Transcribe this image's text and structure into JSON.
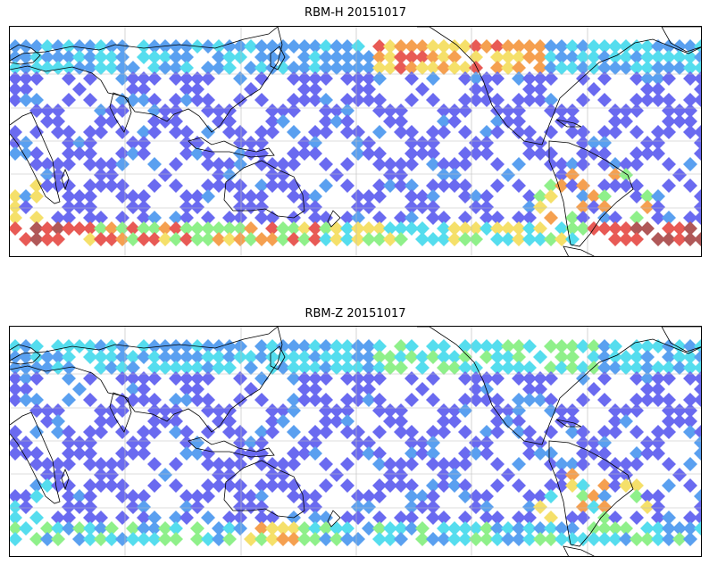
{
  "panels": [
    {
      "title": "RBM-H 20151017",
      "palette": [
        "#6a6af0",
        "#5aa0f0",
        "#55ddee",
        "#8ff08a",
        "#f5e06a",
        "#f5a050",
        "#e85a55",
        "#b05858"
      ],
      "south_band_level": "high"
    },
    {
      "title": "RBM-Z 20151017",
      "palette": [
        "#6a6af0",
        "#5aa0f0",
        "#55ddee",
        "#8ff08a",
        "#f5e06a",
        "#f5a050",
        "#e85a55"
      ],
      "south_band_level": "low"
    }
  ],
  "colors": {
    "coastline": "#000000",
    "grid": "#bbbbbb",
    "frame": "#000000"
  },
  "grid": {
    "meridian_count": 5,
    "parallel_count": 5
  }
}
